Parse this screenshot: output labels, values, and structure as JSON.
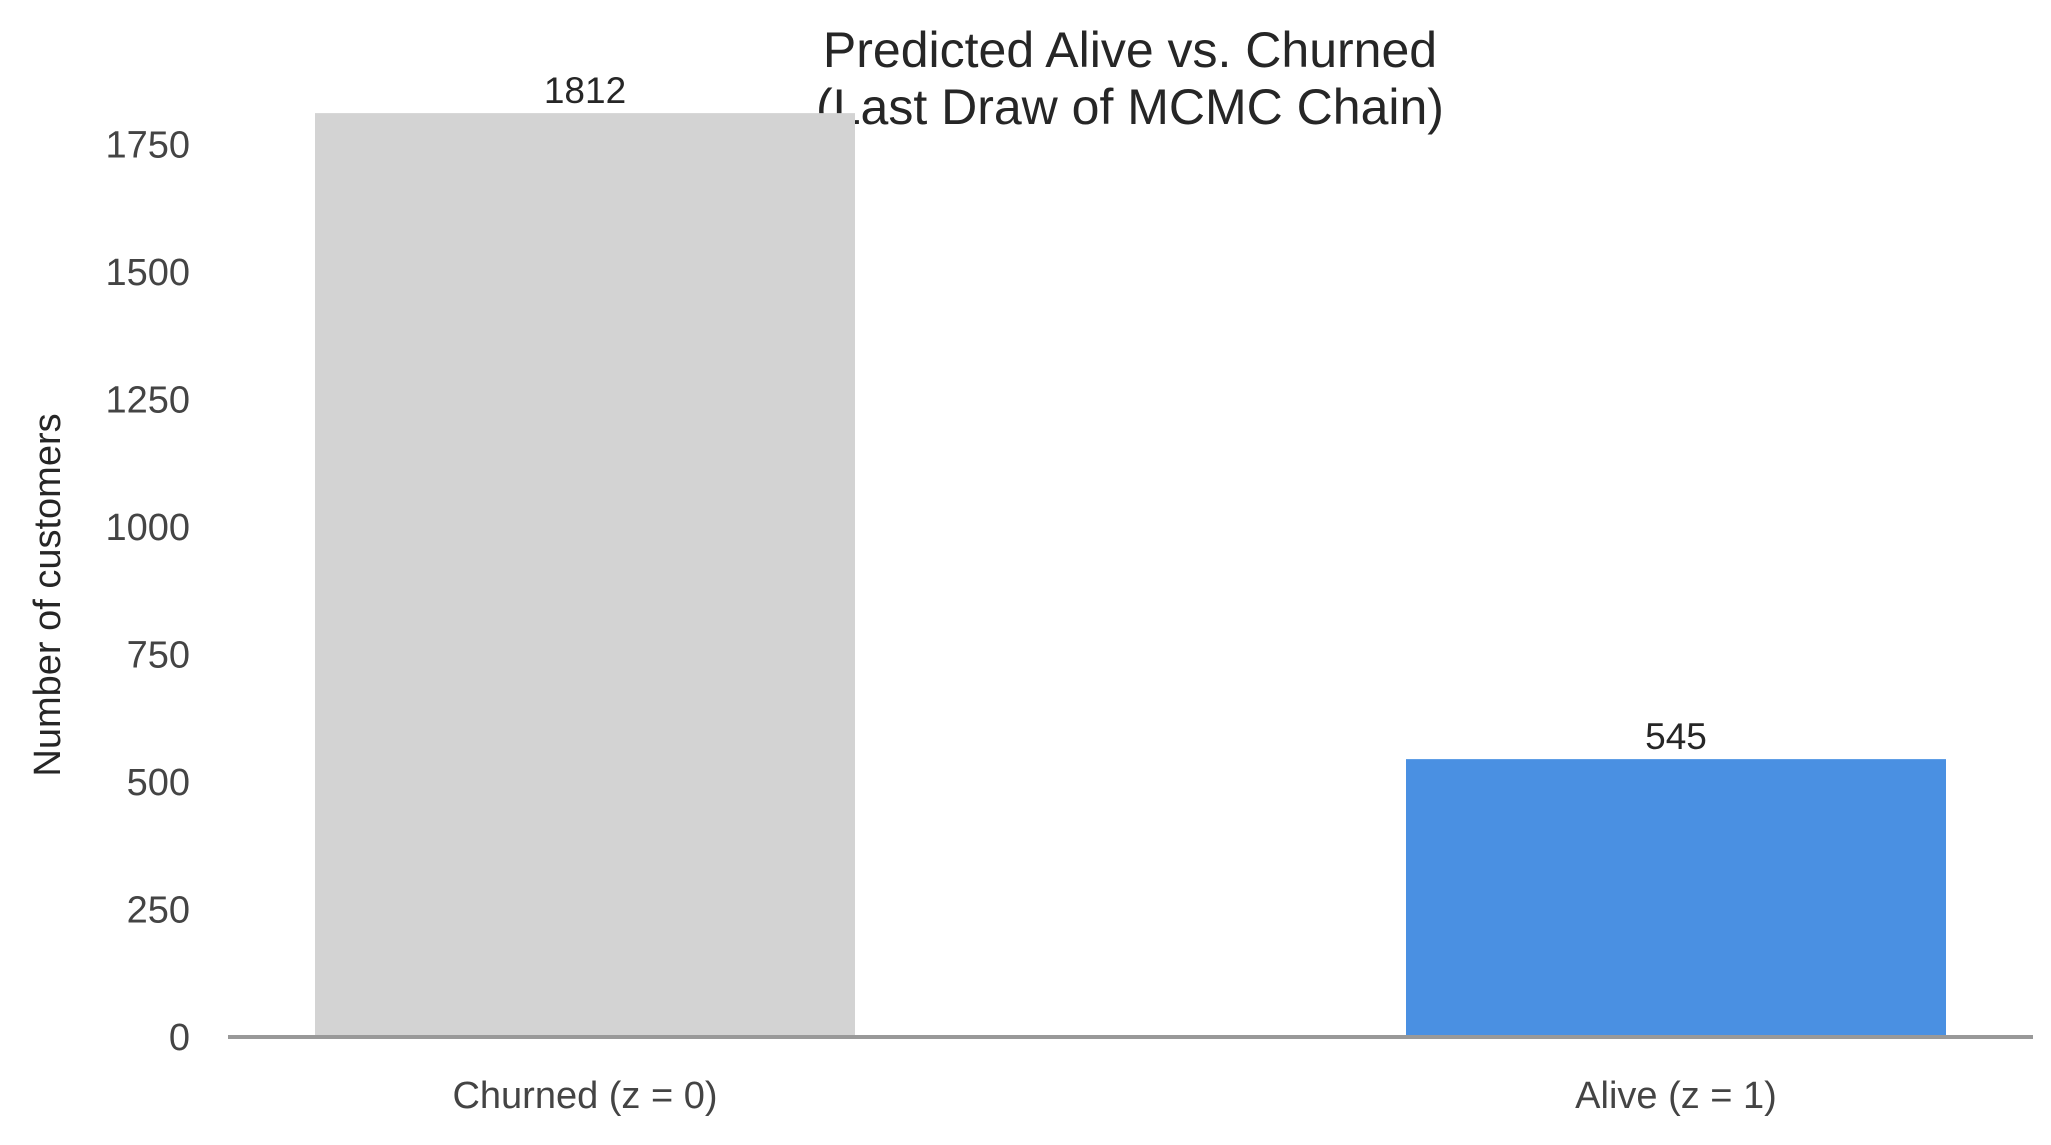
{
  "chart_data": {
    "type": "bar",
    "title": "Predicted Alive vs. Churned",
    "subtitle": "(Last Draw of MCMC Chain)",
    "xlabel": "",
    "ylabel": "Number of customers",
    "categories": [
      "Churned (z = 0)",
      "Alive (z = 1)"
    ],
    "values": [
      1812,
      545
    ],
    "data_labels": [
      "1812",
      "545"
    ],
    "colors": [
      "#d3d3d3",
      "#4a90e2"
    ],
    "ylim": [
      0,
      1875
    ],
    "yticks": [
      0,
      250,
      500,
      750,
      1000,
      1250,
      1500,
      1750
    ],
    "grid": false,
    "legend": "none",
    "baseline_color": "#999999"
  }
}
